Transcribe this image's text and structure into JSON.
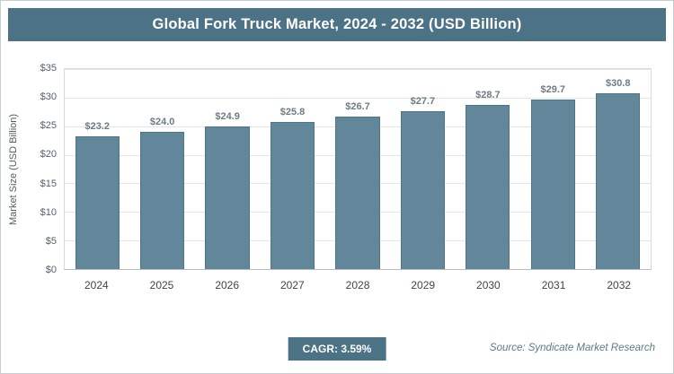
{
  "header": {
    "title": "Global Fork Truck Market, 2024 - 2032 (USD Billion)"
  },
  "chart_data": {
    "type": "bar",
    "title": "Global Fork Truck Market, 2024 - 2032 (USD Billion)",
    "categories": [
      "2024",
      "2025",
      "2026",
      "2027",
      "2028",
      "2029",
      "2030",
      "2031",
      "2032"
    ],
    "values": [
      23.2,
      24.0,
      24.9,
      25.8,
      26.7,
      27.7,
      28.7,
      29.7,
      30.8
    ],
    "value_labels": [
      "$23.2",
      "$24.0",
      "$24.9",
      "$25.8",
      "$26.7",
      "$27.7",
      "$28.7",
      "$29.7",
      "$30.8"
    ],
    "xlabel": "",
    "ylabel": "Market Size (USD Billion)",
    "ylim": [
      0,
      35
    ],
    "yticks": [
      0,
      5,
      10,
      15,
      20,
      25,
      30,
      35
    ],
    "ytick_labels": [
      "$0",
      "$5",
      "$10",
      "$15",
      "$20",
      "$25",
      "$30",
      "$35"
    ],
    "grid": true,
    "legend": false,
    "bar_color": "#62869a",
    "bar_border_color": "#4e7488"
  },
  "footer": {
    "cagr_label": "CAGR: 3.59%",
    "source": "Source: Syndicate Market Research"
  },
  "colors": {
    "header_bg": "#4c7286",
    "accent": "#4c7286"
  }
}
